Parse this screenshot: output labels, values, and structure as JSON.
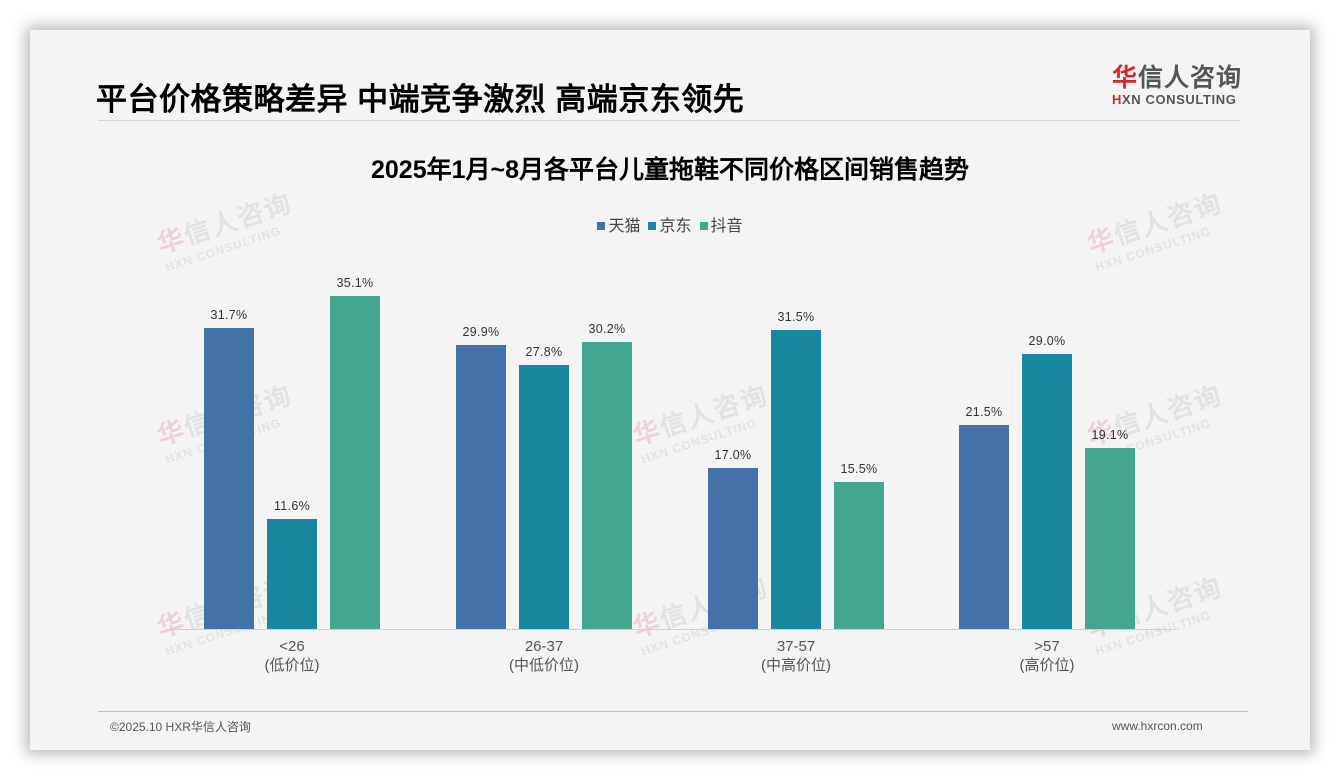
{
  "slide": {
    "title": "平台价格策略差异 中端竞争激烈 高端京东领先",
    "logo": {
      "cn_highlight": "华",
      "cn_rest": "信人咨询",
      "en_highlight": "H",
      "en_rest": "XN CONSULTING"
    },
    "watermark": {
      "cn_highlight": "华",
      "cn_rest": "信人咨询",
      "en": "HXN CONSULTING"
    },
    "footer": {
      "copyright": "©2025.10 HXR华信人咨询",
      "website": "www.hxrcon.com"
    }
  },
  "colors": {
    "tmall": "#4272a8",
    "jd": "#1a87a0",
    "douyin": "#43a690"
  },
  "chart_data": {
    "type": "bar",
    "title": "2025年1月~8月各平台儿童拖鞋不同价格区间销售趋势",
    "categories": [
      "<26",
      "26-37",
      "37-57",
      ">57"
    ],
    "category_sublabels": [
      "(低价位)",
      "(中低价位)",
      "(中高价位)",
      "(高价位)"
    ],
    "series": [
      {
        "name": "天猫",
        "color": "#4272a8",
        "values": [
          31.7,
          29.9,
          17.0,
          21.5
        ],
        "labels": [
          "31.7%",
          "29.9%",
          "17.0%",
          "21.5%"
        ]
      },
      {
        "name": "京东",
        "color": "#1a87a0",
        "values": [
          11.6,
          27.8,
          31.5,
          29.0
        ],
        "labels": [
          "11.6%",
          "27.8%",
          "31.5%",
          "29.0%"
        ]
      },
      {
        "name": "抖音",
        "color": "#43a690",
        "values": [
          35.1,
          30.2,
          15.5,
          19.1
        ],
        "labels": [
          "35.1%",
          "30.2%",
          "15.5%",
          "19.1%"
        ]
      }
    ],
    "xlabel": "",
    "ylabel": "",
    "unit": "%",
    "ylim": [
      0,
      36
    ],
    "grid": false,
    "legend_position": "top",
    "legend": [
      "天猫",
      "京东",
      "抖音"
    ]
  }
}
